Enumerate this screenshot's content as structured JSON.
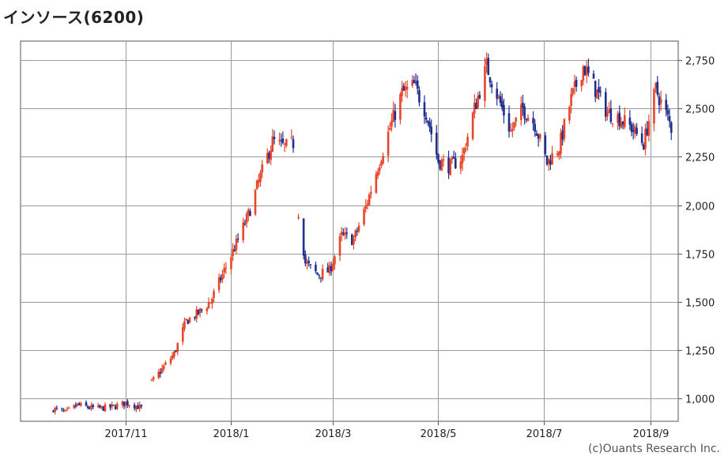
{
  "header": {
    "title": "インソース(6200)"
  },
  "footer": {
    "credit": "(c)Ouants Research Inc."
  },
  "colors": {
    "up": "#e8462a",
    "down": "#1f2f8f",
    "grid": "#9a9a9a",
    "frame": "#555555"
  },
  "chart_data": {
    "type": "candlestick",
    "title": "インソース(6200)",
    "grid": true,
    "y_axis_position": "right",
    "ylim": [
      880,
      2850
    ],
    "yticks": [
      {
        "value": 1000,
        "label": "1,000"
      },
      {
        "value": 1250,
        "label": "1,250"
      },
      {
        "value": 1500,
        "label": "1,500"
      },
      {
        "value": 1750,
        "label": "1,750"
      },
      {
        "value": 2000,
        "label": "2,000"
      },
      {
        "value": 2250,
        "label": "2,250"
      },
      {
        "value": 2500,
        "label": "2,500"
      },
      {
        "value": 2750,
        "label": "2,750"
      }
    ],
    "xlim": [
      "2017-09-01",
      "2018-09-17"
    ],
    "xticks": [
      {
        "date": "2017-11-01",
        "label": "2017/11"
      },
      {
        "date": "2018-01-01",
        "label": "2018/1"
      },
      {
        "date": "2018-03-01",
        "label": "2018/3"
      },
      {
        "date": "2018-05-01",
        "label": "2018/5"
      },
      {
        "date": "2018-07-01",
        "label": "2018/7"
      },
      {
        "date": "2018-09-01",
        "label": "2018/9"
      }
    ],
    "series": [
      {
        "values": [
          [
            "2017-09-20",
            945
          ],
          [
            "2017-09-27",
            925
          ],
          [
            "2017-10-04",
            965
          ],
          [
            "2017-10-11",
            950
          ],
          [
            "2017-10-18",
            948
          ],
          [
            "2017-10-25",
            955
          ],
          [
            "2017-11-01",
            975
          ],
          [
            "2017-11-07",
            960
          ],
          [
            "2017-11-10",
            948
          ],
          [
            "2017-11-15",
            1070
          ],
          [
            "2017-11-22",
            1150
          ],
          [
            "2017-11-29",
            1230
          ],
          [
            "2017-12-06",
            1400
          ],
          [
            "2017-12-13",
            1440
          ],
          [
            "2017-12-20",
            1500
          ],
          [
            "2017-12-27",
            1640
          ],
          [
            "2018-01-04",
            1800
          ],
          [
            "2018-01-11",
            1950
          ],
          [
            "2018-01-18",
            2150
          ],
          [
            "2018-01-25",
            2330
          ],
          [
            "2018-02-01",
            2300
          ],
          [
            "2018-02-06",
            2320
          ],
          [
            "2018-02-08",
            2030
          ],
          [
            "2018-02-13",
            1700
          ],
          [
            "2018-02-20",
            1640
          ],
          [
            "2018-02-27",
            1660
          ],
          [
            "2018-03-06",
            1840
          ],
          [
            "2018-03-13",
            1820
          ],
          [
            "2018-03-20",
            1990
          ],
          [
            "2018-03-27",
            2200
          ],
          [
            "2018-04-03",
            2400
          ],
          [
            "2018-04-10",
            2580
          ],
          [
            "2018-04-17",
            2620
          ],
          [
            "2018-04-24",
            2480
          ],
          [
            "2018-05-01",
            2230
          ],
          [
            "2018-05-08",
            2200
          ],
          [
            "2018-05-15",
            2250
          ],
          [
            "2018-05-22",
            2500
          ],
          [
            "2018-05-29",
            2720
          ],
          [
            "2018-06-05",
            2550
          ],
          [
            "2018-06-12",
            2380
          ],
          [
            "2018-06-19",
            2500
          ],
          [
            "2018-06-26",
            2420
          ],
          [
            "2018-07-03",
            2220
          ],
          [
            "2018-07-10",
            2300
          ],
          [
            "2018-07-17",
            2550
          ],
          [
            "2018-07-24",
            2720
          ],
          [
            "2018-07-31",
            2600
          ],
          [
            "2018-08-07",
            2480
          ],
          [
            "2018-08-14",
            2450
          ],
          [
            "2018-08-21",
            2400
          ],
          [
            "2018-08-28",
            2320
          ],
          [
            "2018-09-04",
            2600
          ],
          [
            "2018-09-11",
            2450
          ],
          [
            "2018-09-13",
            2400
          ]
        ]
      }
    ]
  }
}
